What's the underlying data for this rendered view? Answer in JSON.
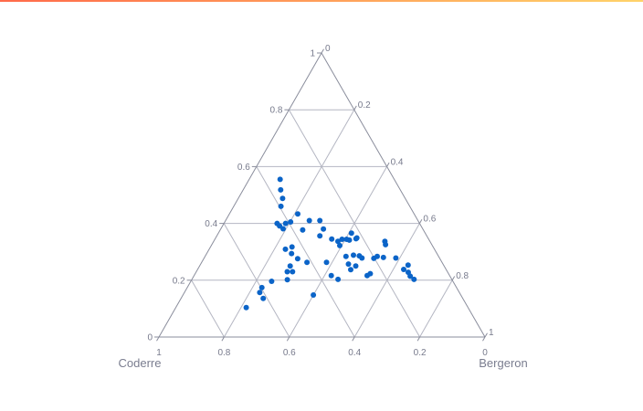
{
  "colors": {
    "accent_bar_start": "#ff6a4a",
    "accent_bar_end": "#ffd36a",
    "grid": "#b4b6c2",
    "axis": "#8a8d9c",
    "tick_text": "#777a8c",
    "marker": "#0b64c8"
  },
  "chart_data": {
    "type": "scatter-ternary",
    "title": "",
    "axes": {
      "a": {
        "title": "",
        "range": [
          0,
          1
        ],
        "ticks": [
          "0",
          "0.2",
          "0.4",
          "0.6",
          "0.8",
          "1"
        ]
      },
      "b": {
        "title": "Coderre",
        "range": [
          0,
          1
        ],
        "ticks": [
          "0",
          "0.2",
          "0.4",
          "0.6",
          "0.8",
          "1"
        ]
      },
      "c": {
        "title": "Bergeron",
        "range": [
          0,
          1
        ],
        "ticks": [
          "0",
          "0.2",
          "0.4",
          "0.6",
          "0.8",
          "1"
        ]
      }
    },
    "grid": true,
    "series": [
      {
        "name": "points",
        "points": [
          {
            "a": 0.555,
            "b": 0.35,
            "c": 0.095
          },
          {
            "a": 0.518,
            "b": 0.367,
            "c": 0.115
          },
          {
            "a": 0.488,
            "b": 0.376,
            "c": 0.136
          },
          {
            "a": 0.46,
            "b": 0.395,
            "c": 0.145
          },
          {
            "a": 0.433,
            "b": 0.357,
            "c": 0.21
          },
          {
            "a": 0.41,
            "b": 0.301,
            "c": 0.289
          },
          {
            "a": 0.41,
            "b": 0.333,
            "c": 0.257
          },
          {
            "a": 0.4,
            "b": 0.437,
            "c": 0.163
          },
          {
            "a": 0.4,
            "b": 0.411,
            "c": 0.189
          },
          {
            "a": 0.405,
            "b": 0.393,
            "c": 0.202
          },
          {
            "a": 0.391,
            "b": 0.434,
            "c": 0.175
          },
          {
            "a": 0.381,
            "b": 0.428,
            "c": 0.191
          },
          {
            "a": 0.377,
            "b": 0.37,
            "c": 0.253
          },
          {
            "a": 0.38,
            "b": 0.305,
            "c": 0.315
          },
          {
            "a": 0.366,
            "b": 0.226,
            "c": 0.408
          },
          {
            "a": 0.356,
            "b": 0.328,
            "c": 0.316
          },
          {
            "a": 0.345,
            "b": 0.297,
            "c": 0.358
          },
          {
            "a": 0.344,
            "b": 0.266,
            "c": 0.39
          },
          {
            "a": 0.344,
            "b": 0.252,
            "c": 0.404
          },
          {
            "a": 0.346,
            "b": 0.222,
            "c": 0.432
          },
          {
            "a": 0.349,
            "b": 0.218,
            "c": 0.433
          },
          {
            "a": 0.337,
            "b": 0.282,
            "c": 0.381
          },
          {
            "a": 0.341,
            "b": 0.245,
            "c": 0.414
          },
          {
            "a": 0.337,
            "b": 0.138,
            "c": 0.525
          },
          {
            "a": 0.325,
            "b": 0.142,
            "c": 0.533
          },
          {
            "a": 0.317,
            "b": 0.433,
            "c": 0.25
          },
          {
            "a": 0.322,
            "b": 0.284,
            "c": 0.394
          },
          {
            "a": 0.309,
            "b": 0.457,
            "c": 0.234
          },
          {
            "a": 0.294,
            "b": 0.446,
            "c": 0.26
          },
          {
            "a": 0.284,
            "b": 0.284,
            "c": 0.432
          },
          {
            "a": 0.28,
            "b": 0.171,
            "c": 0.549
          },
          {
            "a": 0.288,
            "b": 0.259,
            "c": 0.453
          },
          {
            "a": 0.286,
            "b": 0.242,
            "c": 0.472
          },
          {
            "a": 0.278,
            "b": 0.238,
            "c": 0.484
          },
          {
            "a": 0.277,
            "b": 0.202,
            "c": 0.521
          },
          {
            "a": 0.284,
            "b": 0.188,
            "c": 0.528
          },
          {
            "a": 0.278,
            "b": 0.134,
            "c": 0.588
          },
          {
            "a": 0.276,
            "b": 0.436,
            "c": 0.288
          },
          {
            "a": 0.263,
            "b": 0.414,
            "c": 0.323
          },
          {
            "a": 0.263,
            "b": 0.354,
            "c": 0.383
          },
          {
            "a": 0.257,
            "b": 0.29,
            "c": 0.453
          },
          {
            "a": 0.25,
            "b": 0.472,
            "c": 0.278
          },
          {
            "a": 0.25,
            "b": 0.271,
            "c": 0.479
          },
          {
            "a": 0.253,
            "b": 0.109,
            "c": 0.638
          },
          {
            "a": 0.238,
            "b": 0.13,
            "c": 0.632
          },
          {
            "a": 0.237,
            "b": 0.293,
            "c": 0.47
          },
          {
            "a": 0.23,
            "b": 0.491,
            "c": 0.279
          },
          {
            "a": 0.23,
            "b": 0.475,
            "c": 0.295
          },
          {
            "a": 0.216,
            "b": 0.363,
            "c": 0.421
          },
          {
            "a": 0.216,
            "b": 0.253,
            "c": 0.531
          },
          {
            "a": 0.223,
            "b": 0.24,
            "c": 0.537
          },
          {
            "a": 0.228,
            "b": 0.121,
            "c": 0.651
          },
          {
            "a": 0.214,
            "b": 0.122,
            "c": 0.664
          },
          {
            "a": 0.203,
            "b": 0.349,
            "c": 0.448
          },
          {
            "a": 0.196,
            "b": 0.556,
            "c": 0.248
          },
          {
            "a": 0.174,
            "b": 0.597,
            "c": 0.229
          },
          {
            "a": 0.157,
            "b": 0.612,
            "c": 0.231
          },
          {
            "a": 0.136,
            "b": 0.612,
            "c": 0.252
          },
          {
            "a": 0.104,
            "b": 0.68,
            "c": 0.216
          },
          {
            "a": 0.202,
            "b": 0.505,
            "c": 0.293
          },
          {
            "a": 0.203,
            "b": 0.116,
            "c": 0.681
          },
          {
            "a": 0.148,
            "b": 0.452,
            "c": 0.4
          }
        ]
      }
    ]
  }
}
